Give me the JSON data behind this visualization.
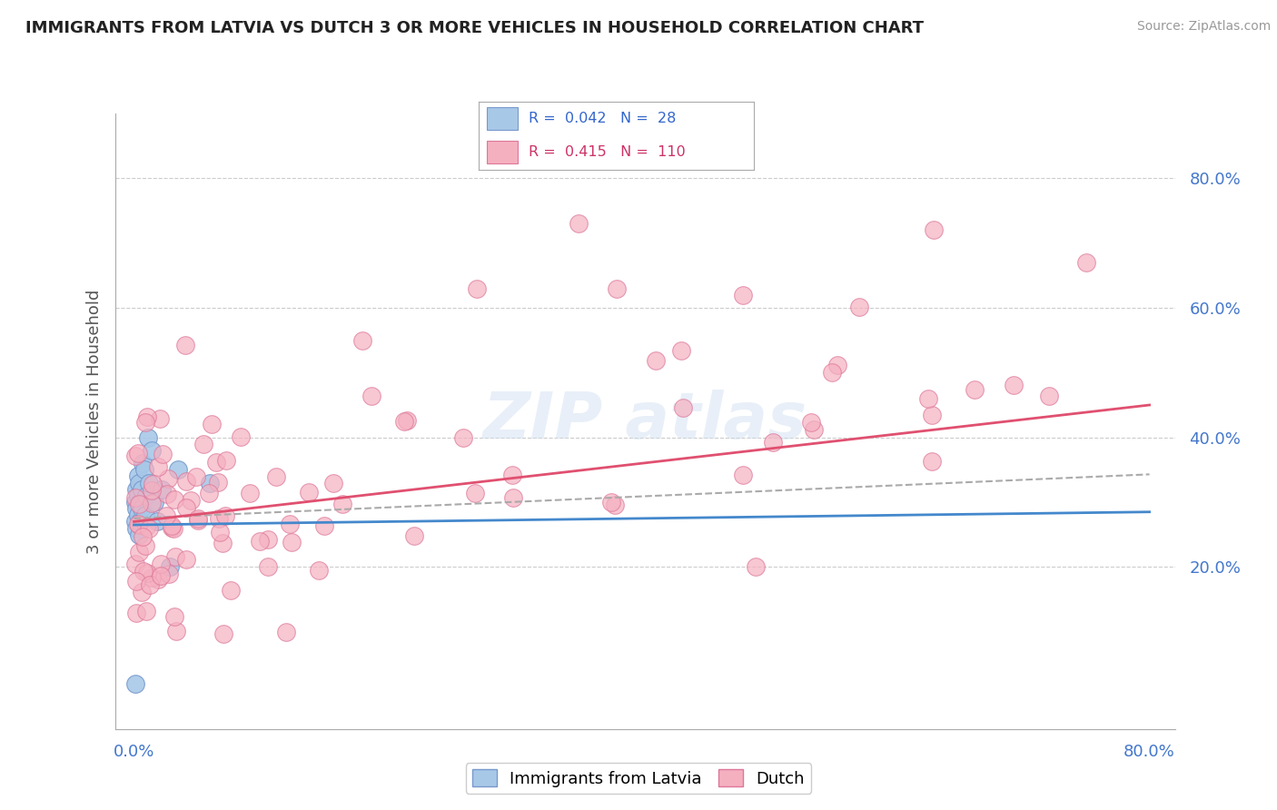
{
  "title": "IMMIGRANTS FROM LATVIA VS DUTCH 3 OR MORE VEHICLES IN HOUSEHOLD CORRELATION CHART",
  "source": "Source: ZipAtlas.com",
  "ylabel": "3 or more Vehicles in Household",
  "right_yticks": [
    "20.0%",
    "40.0%",
    "60.0%",
    "80.0%"
  ],
  "right_ytick_vals": [
    0.2,
    0.4,
    0.6,
    0.8
  ],
  "legend_label1": "Immigrants from Latvia",
  "legend_label2": "Dutch",
  "R1": "0.042",
  "N1": "28",
  "R2": "0.415",
  "N2": "110",
  "color_blue": "#a8c8e8",
  "color_pink": "#f5b0c0",
  "color_blue_line": "#4488cc",
  "color_pink_line": "#e05070",
  "color_dashed": "#aaaaaa",
  "xlim": [
    0.0,
    0.8
  ],
  "ylim": [
    0.0,
    0.88
  ],
  "title_fontsize": 13,
  "axis_fontsize": 13
}
